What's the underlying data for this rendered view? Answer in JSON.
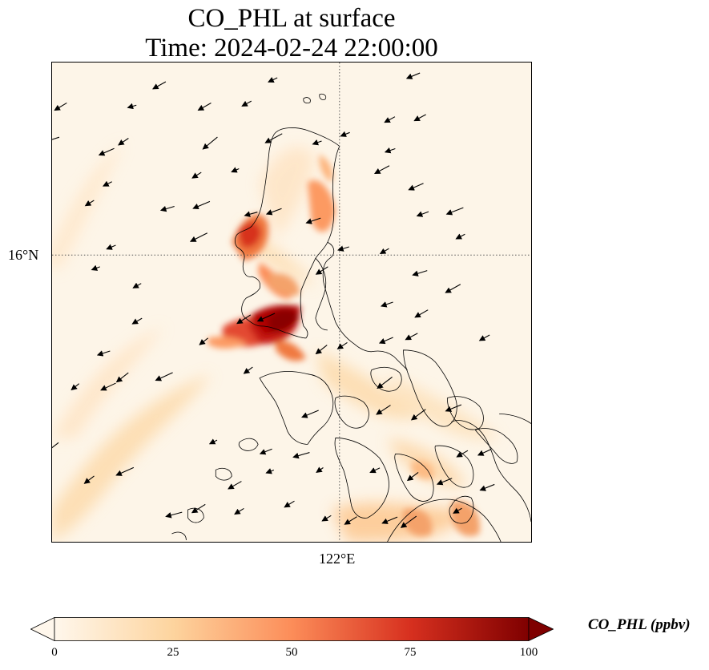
{
  "title": {
    "line1": "CO_PHL at surface",
    "line2": "Time: 2024-02-24 22:00:00"
  },
  "axes": {
    "lat_tick": "16°N",
    "lon_tick": "122°E",
    "gridlines": "dotted"
  },
  "colorbar": {
    "label": "CO_PHL (ppbv)",
    "ticks": [
      "0",
      "25",
      "50",
      "75",
      "100"
    ],
    "min": 0,
    "max": 100,
    "extend": "both",
    "colormap": "OrRd",
    "colors": [
      "#fff7ec",
      "#fdd49e",
      "#fc8d59",
      "#d7301f",
      "#7f0000"
    ]
  },
  "chart_data": {
    "type": "heatmap",
    "variable": "CO_PHL",
    "units": "ppbv",
    "level": "surface",
    "time": "2024-02-24 22:00:00",
    "hotspots": [
      {
        "lon": 121.0,
        "lat": 14.6,
        "value": 100
      },
      {
        "lon": 120.8,
        "lat": 14.5,
        "value": 90
      },
      {
        "lon": 120.6,
        "lat": 14.55,
        "value": 75
      },
      {
        "lon": 120.4,
        "lat": 16.3,
        "value": 70
      },
      {
        "lon": 120.5,
        "lat": 15.9,
        "value": 55
      },
      {
        "lon": 120.9,
        "lat": 15.5,
        "value": 50
      },
      {
        "lon": 121.9,
        "lat": 16.8,
        "value": 40
      },
      {
        "lon": 121.8,
        "lat": 16.3,
        "value": 40
      },
      {
        "lon": 121.0,
        "lat": 14.2,
        "value": 55
      },
      {
        "lon": 122.7,
        "lat": 10.8,
        "value": 45
      },
      {
        "lon": 123.5,
        "lat": 10.8,
        "value": 45
      }
    ],
    "wind_vectors": "north-easterly, flowing toward the south-west"
  }
}
